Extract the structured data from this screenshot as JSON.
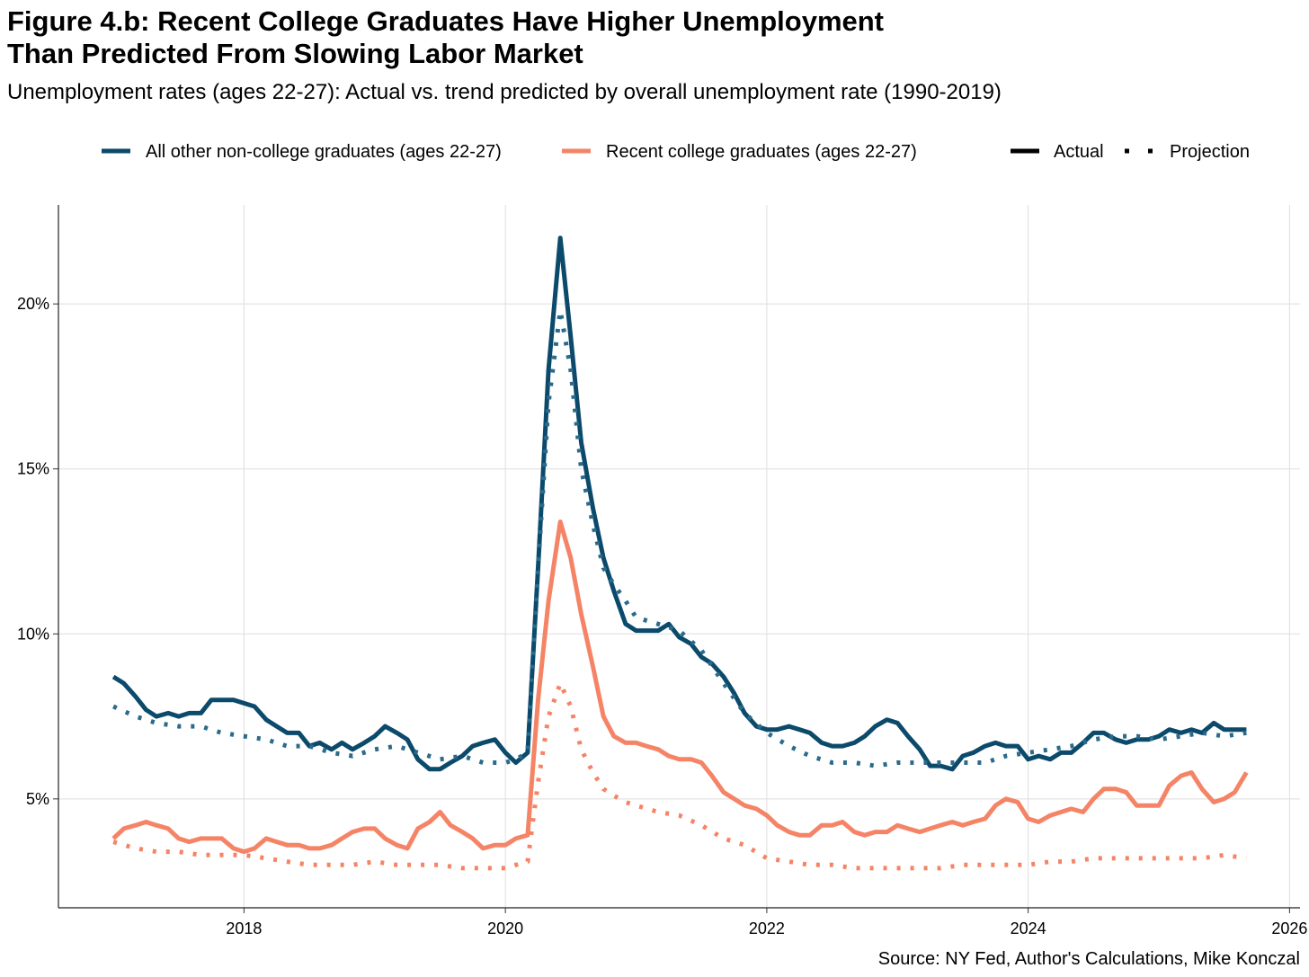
{
  "chart_data": {
    "type": "line",
    "title": "Figure 4.b: Recent College Graduates Have Higher Unemployment Than Predicted From Slowing Labor Market",
    "subtitle": "Unemployment rates (ages 22-27): Actual vs. trend predicted by overall unemployment rate (1990-2019)",
    "source": "Source: NY Fed, Author's Calculations, Mike Konczal",
    "legend": {
      "placement": "top",
      "series_entries": [
        {
          "label": "All other non-college graduates (ages 22-27)",
          "color": "#0B4A6B"
        },
        {
          "label": "Recent college graduates (ages 22-27)",
          "color": "#F58466"
        }
      ],
      "linetype_entries": [
        {
          "label": "Actual",
          "style": "solid"
        },
        {
          "label": "Projection",
          "style": "dotted"
        }
      ]
    },
    "xlabel": "",
    "ylabel": "",
    "x_ticks": [
      "2018",
      "2020",
      "2022",
      "2024",
      "2026"
    ],
    "y_ticks": [
      "5%",
      "10%",
      "15%",
      "20%"
    ],
    "xlim": [
      2016.58,
      2026.08
    ],
    "ylim": [
      1.7,
      23.0
    ],
    "grid": true,
    "series": [
      {
        "name": "All other non-college graduates (ages 22-27)",
        "style": "solid",
        "color": "#0B4A6B",
        "x": [
          2017.0,
          2017.08,
          2017.17,
          2017.25,
          2017.33,
          2017.42,
          2017.5,
          2017.58,
          2017.67,
          2017.75,
          2017.83,
          2017.92,
          2018.0,
          2018.08,
          2018.17,
          2018.25,
          2018.33,
          2018.42,
          2018.5,
          2018.58,
          2018.67,
          2018.75,
          2018.83,
          2018.92,
          2019.0,
          2019.08,
          2019.17,
          2019.25,
          2019.33,
          2019.42,
          2019.5,
          2019.58,
          2019.67,
          2019.75,
          2019.83,
          2019.92,
          2020.0,
          2020.08,
          2020.17,
          2020.25,
          2020.33,
          2020.42,
          2020.5,
          2020.58,
          2020.67,
          2020.75,
          2020.83,
          2020.92,
          2021.0,
          2021.08,
          2021.17,
          2021.25,
          2021.33,
          2021.42,
          2021.5,
          2021.58,
          2021.67,
          2021.75,
          2021.83,
          2021.92,
          2022.0,
          2022.08,
          2022.17,
          2022.25,
          2022.33,
          2022.42,
          2022.5,
          2022.58,
          2022.67,
          2022.75,
          2022.83,
          2022.92,
          2023.0,
          2023.08,
          2023.17,
          2023.25,
          2023.33,
          2023.42,
          2023.5,
          2023.58,
          2023.67,
          2023.75,
          2023.83,
          2023.92,
          2024.0,
          2024.08,
          2024.17,
          2024.25,
          2024.33,
          2024.42,
          2024.5,
          2024.58,
          2024.67,
          2024.75,
          2024.83,
          2024.92,
          2025.0,
          2025.08,
          2025.17,
          2025.25,
          2025.33,
          2025.42,
          2025.5,
          2025.58,
          2025.67
        ],
        "y": [
          8.7,
          8.5,
          8.1,
          7.7,
          7.5,
          7.6,
          7.5,
          7.6,
          7.6,
          8.0,
          8.0,
          8.0,
          7.9,
          7.8,
          7.4,
          7.2,
          7.0,
          7.0,
          6.6,
          6.7,
          6.5,
          6.7,
          6.5,
          6.7,
          6.9,
          7.2,
          7.0,
          6.8,
          6.2,
          5.9,
          5.9,
          6.1,
          6.3,
          6.6,
          6.7,
          6.8,
          6.4,
          6.1,
          6.4,
          12.0,
          18.0,
          22.0,
          19.0,
          15.8,
          13.8,
          12.3,
          11.3,
          10.3,
          10.1,
          10.1,
          10.1,
          10.3,
          9.9,
          9.7,
          9.3,
          9.1,
          8.7,
          8.2,
          7.6,
          7.2,
          7.1,
          7.1,
          7.2,
          7.1,
          7.0,
          6.7,
          6.6,
          6.6,
          6.7,
          6.9,
          7.2,
          7.4,
          7.3,
          6.9,
          6.5,
          6.0,
          6.0,
          5.9,
          6.3,
          6.4,
          6.6,
          6.7,
          6.6,
          6.6,
          6.2,
          6.3,
          6.2,
          6.4,
          6.4,
          6.7,
          7.0,
          7.0,
          6.8,
          6.7,
          6.8,
          6.8,
          6.9,
          7.1,
          7.0,
          7.1,
          7.0,
          7.3,
          7.1,
          7.1,
          7.1
        ]
      },
      {
        "name": "All other non-college graduates (ages 22-27)",
        "style": "dotted",
        "color": "#2B6A8A",
        "x": [
          2017.0,
          2017.17,
          2017.33,
          2017.5,
          2017.67,
          2017.83,
          2018.0,
          2018.17,
          2018.33,
          2018.5,
          2018.67,
          2018.83,
          2019.0,
          2019.17,
          2019.33,
          2019.5,
          2019.67,
          2019.83,
          2020.0,
          2020.08,
          2020.17,
          2020.25,
          2020.33,
          2020.42,
          2020.5,
          2020.58,
          2020.67,
          2020.75,
          2020.83,
          2020.92,
          2021.0,
          2021.17,
          2021.33,
          2021.5,
          2021.67,
          2021.83,
          2022.0,
          2022.17,
          2022.33,
          2022.5,
          2022.67,
          2022.83,
          2023.0,
          2023.17,
          2023.33,
          2023.5,
          2023.67,
          2023.83,
          2024.0,
          2024.17,
          2024.33,
          2024.5,
          2024.67,
          2024.83,
          2025.0,
          2025.17,
          2025.33,
          2025.5,
          2025.67
        ],
        "y": [
          7.8,
          7.5,
          7.3,
          7.2,
          7.2,
          7.0,
          6.9,
          6.8,
          6.6,
          6.6,
          6.4,
          6.3,
          6.5,
          6.6,
          6.4,
          6.2,
          6.3,
          6.1,
          6.1,
          6.2,
          6.4,
          12.0,
          17.0,
          19.8,
          18.0,
          15.0,
          13.3,
          12.0,
          11.5,
          11.0,
          10.5,
          10.3,
          10.1,
          9.5,
          8.5,
          7.6,
          7.0,
          6.6,
          6.3,
          6.1,
          6.1,
          6.0,
          6.1,
          6.1,
          6.1,
          6.1,
          6.1,
          6.3,
          6.4,
          6.5,
          6.6,
          6.8,
          6.9,
          6.9,
          6.8,
          6.9,
          7.0,
          6.9,
          7.0
        ]
      },
      {
        "name": "Recent college graduates (ages 22-27)",
        "style": "solid",
        "color": "#F58466",
        "x": [
          2017.0,
          2017.08,
          2017.17,
          2017.25,
          2017.33,
          2017.42,
          2017.5,
          2017.58,
          2017.67,
          2017.75,
          2017.83,
          2017.92,
          2018.0,
          2018.08,
          2018.17,
          2018.25,
          2018.33,
          2018.42,
          2018.5,
          2018.58,
          2018.67,
          2018.75,
          2018.83,
          2018.92,
          2019.0,
          2019.08,
          2019.17,
          2019.25,
          2019.33,
          2019.42,
          2019.5,
          2019.58,
          2019.67,
          2019.75,
          2019.83,
          2019.92,
          2020.0,
          2020.08,
          2020.17,
          2020.25,
          2020.33,
          2020.42,
          2020.5,
          2020.58,
          2020.67,
          2020.75,
          2020.83,
          2020.92,
          2021.0,
          2021.08,
          2021.17,
          2021.25,
          2021.33,
          2021.42,
          2021.5,
          2021.58,
          2021.67,
          2021.75,
          2021.83,
          2021.92,
          2022.0,
          2022.08,
          2022.17,
          2022.25,
          2022.33,
          2022.42,
          2022.5,
          2022.58,
          2022.67,
          2022.75,
          2022.83,
          2022.92,
          2023.0,
          2023.08,
          2023.17,
          2023.25,
          2023.33,
          2023.42,
          2023.5,
          2023.58,
          2023.67,
          2023.75,
          2023.83,
          2023.92,
          2024.0,
          2024.08,
          2024.17,
          2024.25,
          2024.33,
          2024.42,
          2024.5,
          2024.58,
          2024.67,
          2024.75,
          2024.83,
          2024.92,
          2025.0,
          2025.08,
          2025.17,
          2025.25,
          2025.33,
          2025.42,
          2025.5,
          2025.58,
          2025.67
        ],
        "y": [
          3.8,
          4.1,
          4.2,
          4.3,
          4.2,
          4.1,
          3.8,
          3.7,
          3.8,
          3.8,
          3.8,
          3.5,
          3.4,
          3.5,
          3.8,
          3.7,
          3.6,
          3.6,
          3.5,
          3.5,
          3.6,
          3.8,
          4.0,
          4.1,
          4.1,
          3.8,
          3.6,
          3.5,
          4.1,
          4.3,
          4.6,
          4.2,
          4.0,
          3.8,
          3.5,
          3.6,
          3.6,
          3.8,
          3.9,
          8.0,
          11.0,
          13.4,
          12.3,
          10.6,
          9.0,
          7.5,
          6.9,
          6.7,
          6.7,
          6.6,
          6.5,
          6.3,
          6.2,
          6.2,
          6.1,
          5.7,
          5.2,
          5.0,
          4.8,
          4.7,
          4.5,
          4.2,
          4.0,
          3.9,
          3.9,
          4.2,
          4.2,
          4.3,
          4.0,
          3.9,
          4.0,
          4.0,
          4.2,
          4.1,
          4.0,
          4.1,
          4.2,
          4.3,
          4.2,
          4.3,
          4.4,
          4.8,
          5.0,
          4.9,
          4.4,
          4.3,
          4.5,
          4.6,
          4.7,
          4.6,
          5.0,
          5.3,
          5.3,
          5.2,
          4.8,
          4.8,
          4.8,
          5.4,
          5.7,
          5.8,
          5.3,
          4.9,
          5.0,
          5.2,
          5.8
        ]
      },
      {
        "name": "Recent college graduates (ages 22-27)",
        "style": "dotted",
        "color": "#F58466",
        "x": [
          2017.0,
          2017.17,
          2017.33,
          2017.5,
          2017.67,
          2017.83,
          2018.0,
          2018.17,
          2018.33,
          2018.5,
          2018.67,
          2018.83,
          2019.0,
          2019.17,
          2019.33,
          2019.5,
          2019.67,
          2019.83,
          2020.0,
          2020.08,
          2020.17,
          2020.25,
          2020.33,
          2020.42,
          2020.5,
          2020.58,
          2020.67,
          2020.75,
          2020.83,
          2020.92,
          2021.0,
          2021.17,
          2021.33,
          2021.5,
          2021.67,
          2021.83,
          2022.0,
          2022.17,
          2022.33,
          2022.5,
          2022.67,
          2022.83,
          2023.0,
          2023.17,
          2023.33,
          2023.5,
          2023.67,
          2023.83,
          2024.0,
          2024.17,
          2024.33,
          2024.5,
          2024.67,
          2024.83,
          2025.0,
          2025.17,
          2025.33,
          2025.5,
          2025.67
        ],
        "y": [
          3.7,
          3.5,
          3.4,
          3.4,
          3.3,
          3.3,
          3.3,
          3.2,
          3.1,
          3.0,
          3.0,
          3.0,
          3.1,
          3.0,
          3.0,
          3.0,
          2.9,
          2.9,
          2.9,
          3.0,
          3.1,
          5.5,
          7.5,
          8.5,
          7.8,
          6.5,
          5.8,
          5.3,
          5.1,
          4.9,
          4.8,
          4.6,
          4.5,
          4.2,
          3.8,
          3.6,
          3.2,
          3.1,
          3.0,
          3.0,
          2.9,
          2.9,
          2.9,
          2.9,
          2.9,
          3.0,
          3.0,
          3.0,
          3.0,
          3.1,
          3.1,
          3.2,
          3.2,
          3.2,
          3.2,
          3.2,
          3.2,
          3.3,
          3.2
        ]
      }
    ]
  }
}
